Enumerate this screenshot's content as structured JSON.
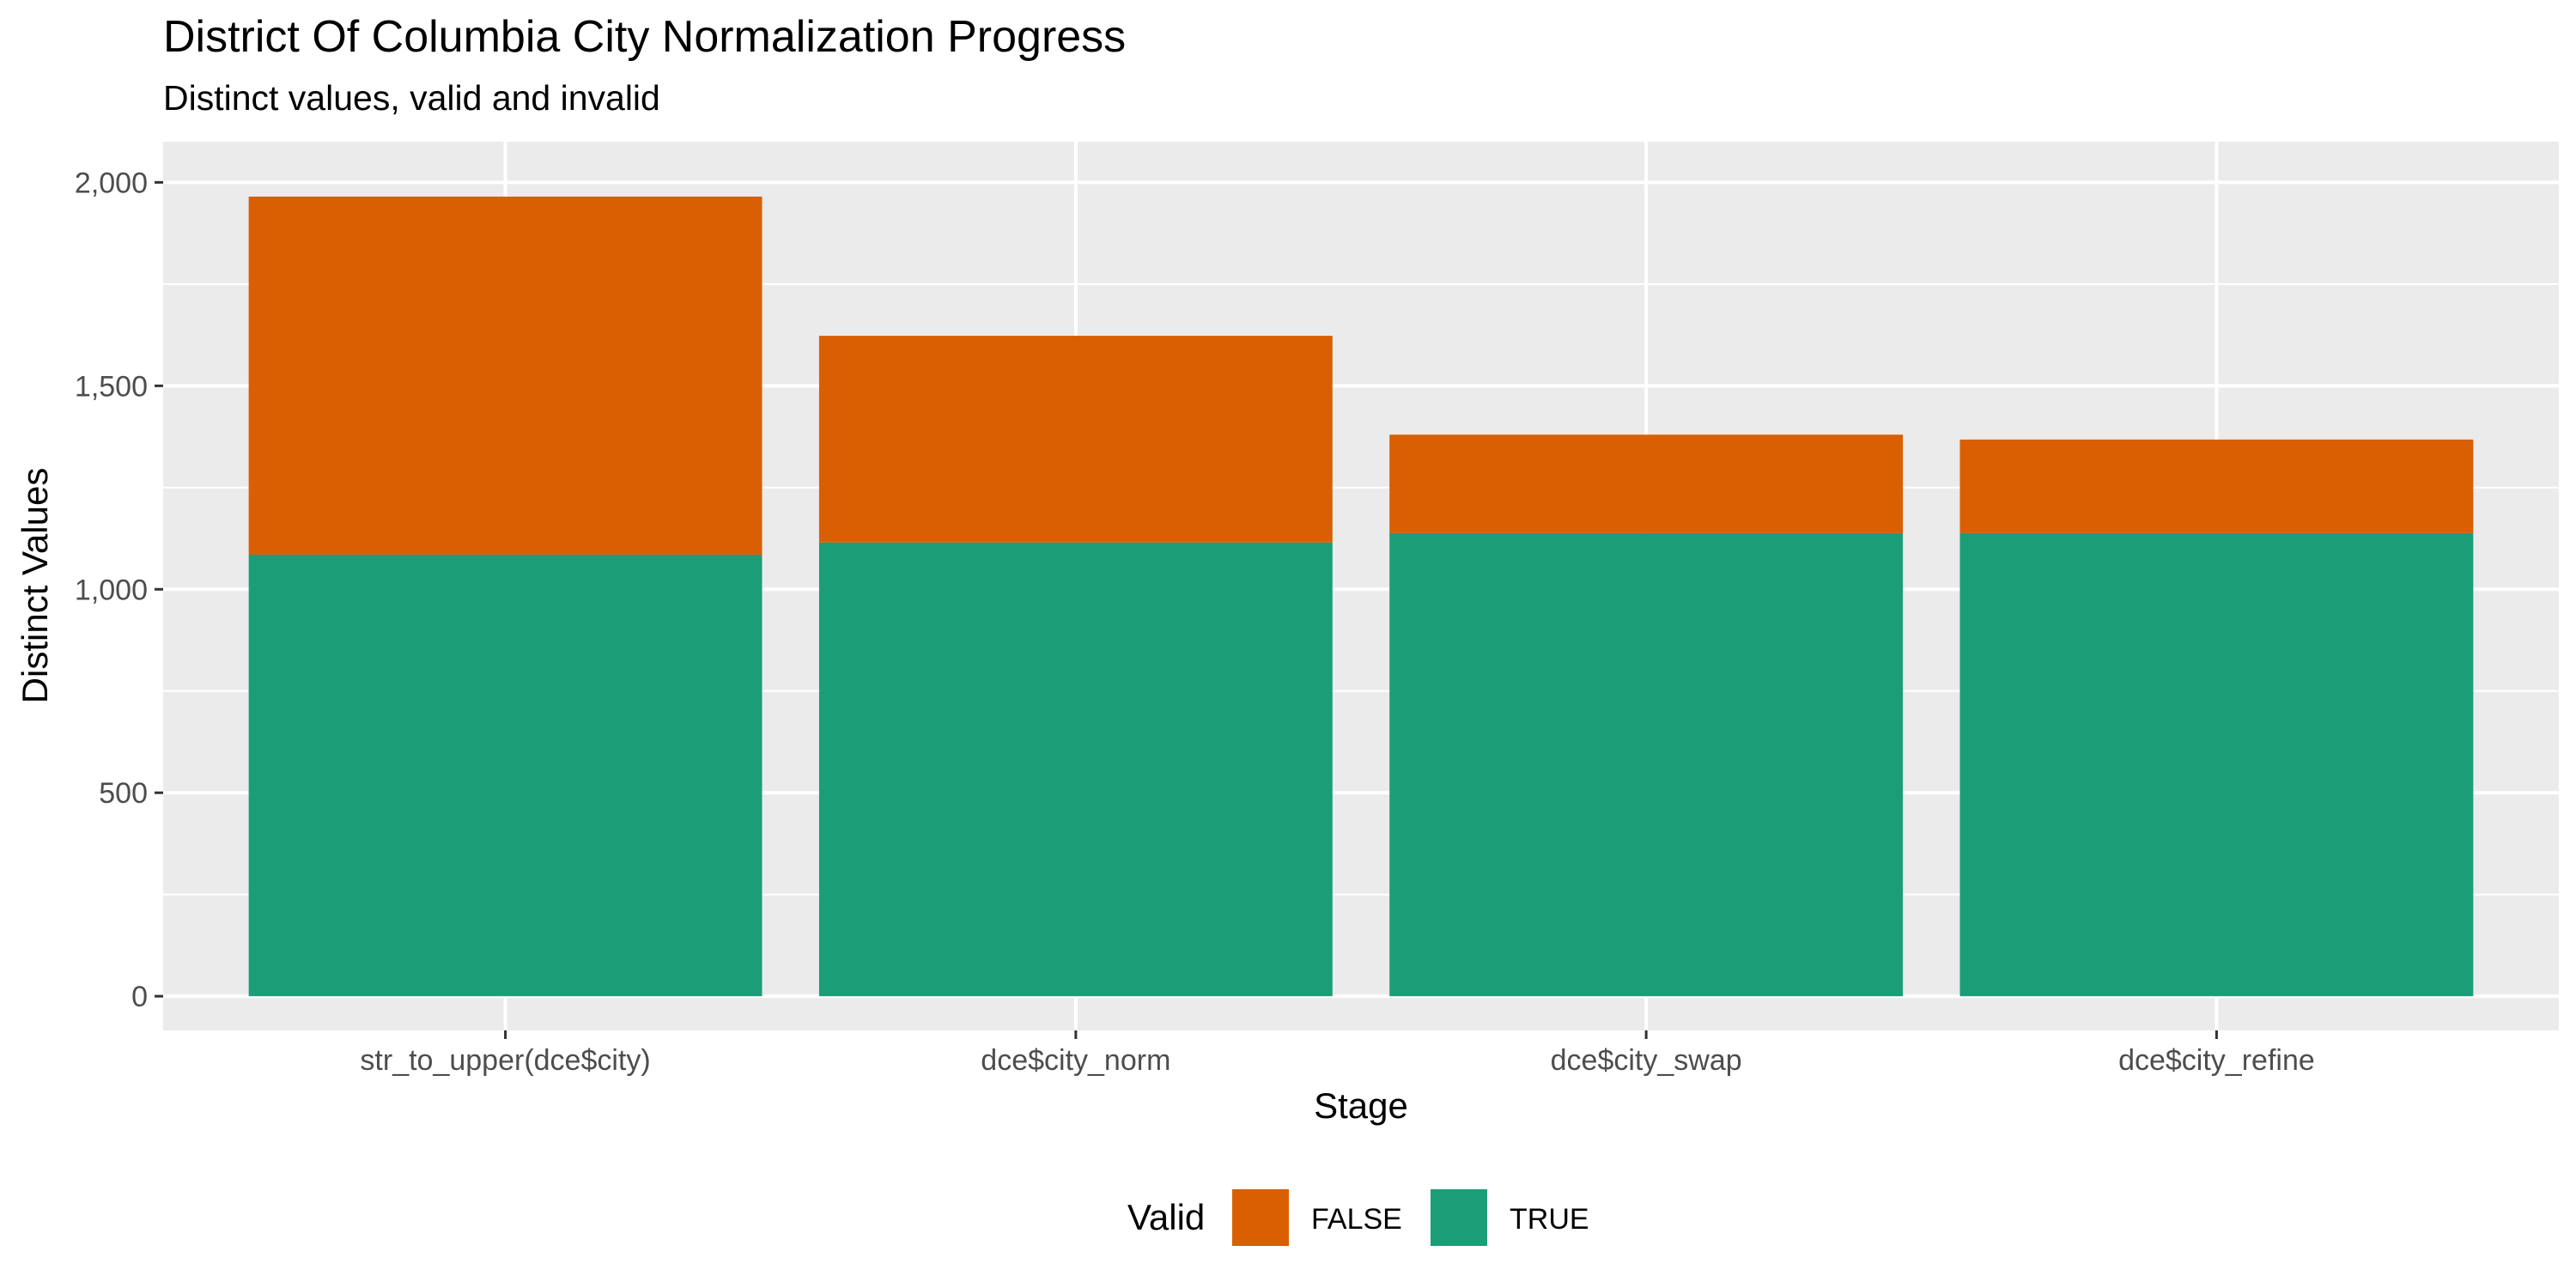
{
  "chart_data": {
    "type": "bar",
    "stacked": true,
    "title": "District Of Columbia City Normalization Progress",
    "subtitle": "Distinct values, valid and invalid",
    "xlabel": "Stage",
    "ylabel": "Distinct Values",
    "categories": [
      "str_to_upper(dce$city)",
      "dce$city_norm",
      "dce$city_swap",
      "dce$city_refine"
    ],
    "series": [
      {
        "name": "TRUE",
        "color": "#1b9e77",
        "values": [
          1085,
          1115,
          1138,
          1138
        ]
      },
      {
        "name": "FALSE",
        "color": "#d95f02",
        "values": [
          880,
          508,
          242,
          230
        ]
      }
    ],
    "ylim": [
      0,
      2100
    ],
    "yticks": [
      0,
      500,
      1000,
      1500,
      2000
    ],
    "ytick_labels": [
      "0",
      "500",
      "1,000",
      "1,500",
      "2,000"
    ],
    "grid": true,
    "legend": {
      "title": "Valid",
      "position": "bottom",
      "entries": [
        {
          "label": "FALSE",
          "color": "#d95f02"
        },
        {
          "label": "TRUE",
          "color": "#1b9e77"
        }
      ]
    }
  }
}
